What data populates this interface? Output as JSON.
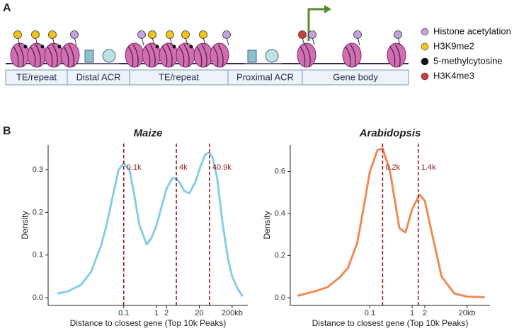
{
  "panel_labels": [
    "A",
    "B"
  ],
  "diagram": {
    "segments": [
      "TE/repeat",
      "Distal ACR",
      "TE/repeat",
      "Proximal ACR",
      "Gene body"
    ],
    "legend": [
      {
        "label": "Histone acetylation",
        "color": "#c4a3dc"
      },
      {
        "label": "H3K9me2",
        "color": "#f2c318"
      },
      {
        "label": "5-methylcytosine",
        "color": "#111111"
      },
      {
        "label": "H3K4me3",
        "color": "#c8413a"
      }
    ]
  },
  "chart_data": [
    {
      "type": "line",
      "title": "Maize",
      "x_label": "Distance to closest gene (Top 10k Peaks)",
      "y_label": "Density",
      "log_x": true,
      "x": [
        0.001,
        0.002,
        0.005,
        0.01,
        0.02,
        0.03,
        0.05,
        0.07,
        0.1,
        0.15,
        0.2,
        0.3,
        0.5,
        0.7,
        1,
        1.5,
        2,
        3,
        4,
        5,
        7,
        10,
        15,
        20,
        30,
        40,
        50,
        70,
        100,
        150,
        200,
        300,
        400
      ],
      "series": [
        {
          "color": "#87cde4",
          "values": [
            0.01,
            0.015,
            0.03,
            0.06,
            0.12,
            0.17,
            0.25,
            0.3,
            0.315,
            0.3,
            0.25,
            0.17,
            0.125,
            0.14,
            0.17,
            0.22,
            0.255,
            0.28,
            0.28,
            0.27,
            0.25,
            0.245,
            0.27,
            0.3,
            0.335,
            0.34,
            0.33,
            0.28,
            0.18,
            0.09,
            0.05,
            0.02,
            0.005
          ]
        }
      ],
      "xlim": [
        0.0005,
        600
      ],
      "ylim": [
        -0.018,
        0.358
      ],
      "xticks": [
        0.1,
        1,
        2,
        20,
        {
          "value": 200,
          "label": "200kb"
        }
      ],
      "yticks": [
        {
          "value": 0,
          "label": "0.0"
        },
        0.1,
        0.2,
        0.3
      ],
      "vlines": [
        {
          "value": 0.1,
          "label": "0.1k"
        },
        {
          "value": 4,
          "label": "4k"
        },
        {
          "value": 40.9,
          "label": "40.9k"
        }
      ],
      "vline_color": "#9b1c1c"
    },
    {
      "type": "line",
      "title": "Arabidopsis",
      "x_label": "Distance to closest gene (Top 10k Peaks)",
      "y_label": "Density",
      "log_x": true,
      "x": [
        0.002,
        0.005,
        0.01,
        0.02,
        0.03,
        0.05,
        0.07,
        0.1,
        0.15,
        0.2,
        0.3,
        0.5,
        0.7,
        1,
        1.5,
        2,
        3,
        5,
        10,
        20,
        50
      ],
      "series": [
        {
          "color": "#f08a55",
          "values": [
            0.01,
            0.03,
            0.05,
            0.1,
            0.14,
            0.26,
            0.42,
            0.6,
            0.7,
            0.71,
            0.6,
            0.33,
            0.31,
            0.42,
            0.49,
            0.46,
            0.3,
            0.1,
            0.02,
            0.005,
            0.002
          ]
        }
      ],
      "xlim": [
        0.0013,
        70
      ],
      "ylim": [
        -0.037,
        0.726
      ],
      "xticks": [
        0.1,
        1,
        2,
        {
          "value": 20,
          "label": "20kb"
        }
      ],
      "yticks": [
        {
          "value": 0,
          "label": "0.0"
        },
        0.2,
        0.4,
        0.6
      ],
      "vlines": [
        {
          "value": 0.2,
          "label": "0.2k"
        },
        {
          "value": 1.4,
          "label": "1.4k"
        }
      ],
      "vline_color": "#9b1c1c"
    }
  ]
}
